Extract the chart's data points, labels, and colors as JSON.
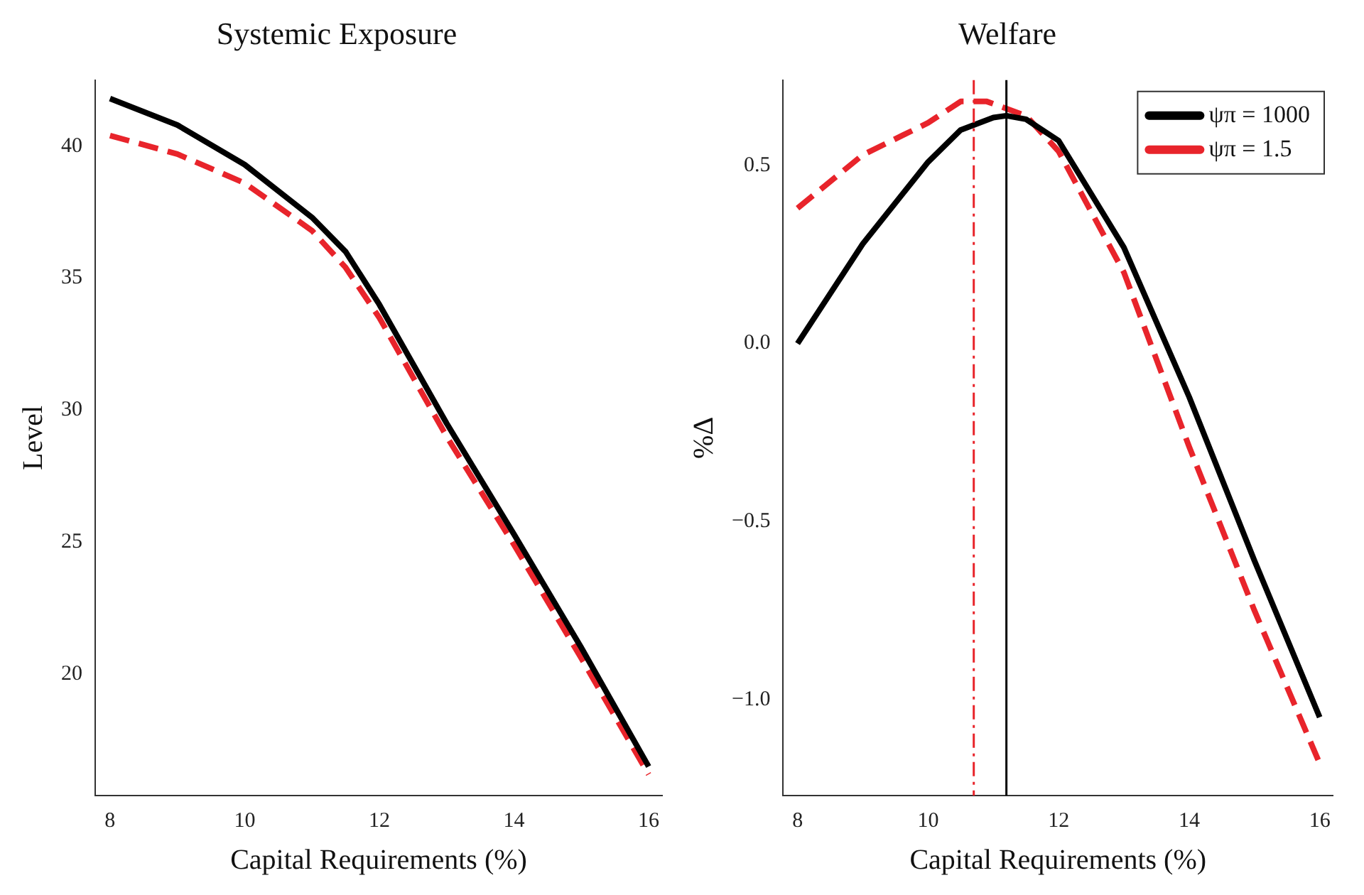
{
  "chart_data": [
    {
      "type": "line",
      "title": "Systemic Exposure",
      "xlabel": "Capital Requirements (%)",
      "ylabel": "Level",
      "x": [
        8,
        9,
        10,
        11,
        11.5,
        12,
        13,
        14,
        15,
        16
      ],
      "series": [
        {
          "color": "#000000",
          "line_style": "solid",
          "values": [
            41.8,
            40.8,
            39.3,
            37.3,
            36.0,
            34.0,
            29.5,
            25.3,
            21.0,
            16.5
          ]
        },
        {
          "color": "#e8242b",
          "line_style": "dashed",
          "values": [
            40.4,
            39.7,
            38.6,
            36.8,
            35.4,
            33.5,
            29.0,
            24.9,
            20.6,
            16.2
          ]
        }
      ],
      "xlim": [
        7.78,
        16.2
      ],
      "xticks": [
        8,
        10,
        12,
        14,
        16
      ],
      "ylim": [
        15.4,
        42.5
      ],
      "yticks": [
        20,
        25,
        30,
        35,
        40
      ],
      "grid": false,
      "legend": false
    },
    {
      "type": "line",
      "title": "Welfare",
      "xlabel": "Capital Requirements (%)",
      "ylabel": "%Δ",
      "series": [
        {
          "name": "ψπ = 1000",
          "color": "#000000",
          "line_style": "solid",
          "x": [
            8,
            9,
            10,
            10.5,
            11,
            11.2,
            11.5,
            12,
            13,
            14,
            15,
            16
          ],
          "values": [
            0.0,
            0.28,
            0.51,
            0.6,
            0.635,
            0.64,
            0.63,
            0.57,
            0.27,
            -0.15,
            -0.61,
            -1.05
          ]
        },
        {
          "name": "ψπ = 1.5",
          "color": "#e8242b",
          "line_style": "dashed",
          "x": [
            8,
            9,
            10,
            10.5,
            10.9,
            11.5,
            12,
            13,
            14,
            15,
            16
          ],
          "values": [
            0.38,
            0.53,
            0.62,
            0.68,
            0.68,
            0.64,
            0.54,
            0.2,
            -0.29,
            -0.75,
            -1.18
          ]
        }
      ],
      "ref_lines": [
        {
          "axis": "x",
          "value": 10.7,
          "color": "#e8242b",
          "line_style": "dashed"
        },
        {
          "axis": "x",
          "value": 11.2,
          "color": "#000000",
          "line_style": "solid"
        }
      ],
      "xlim": [
        7.78,
        16.2
      ],
      "xticks": [
        8,
        10,
        12,
        14,
        16
      ],
      "ylim": [
        -1.27,
        0.74
      ],
      "yticks": [
        {
          "value": -1.0,
          "label": "−1.0"
        },
        {
          "value": -0.5,
          "label": "−0.5"
        },
        {
          "value": 0,
          "label": "0.0"
        },
        {
          "value": 0.5,
          "label": "0.5"
        }
      ],
      "grid": false,
      "legend": "top right"
    }
  ]
}
